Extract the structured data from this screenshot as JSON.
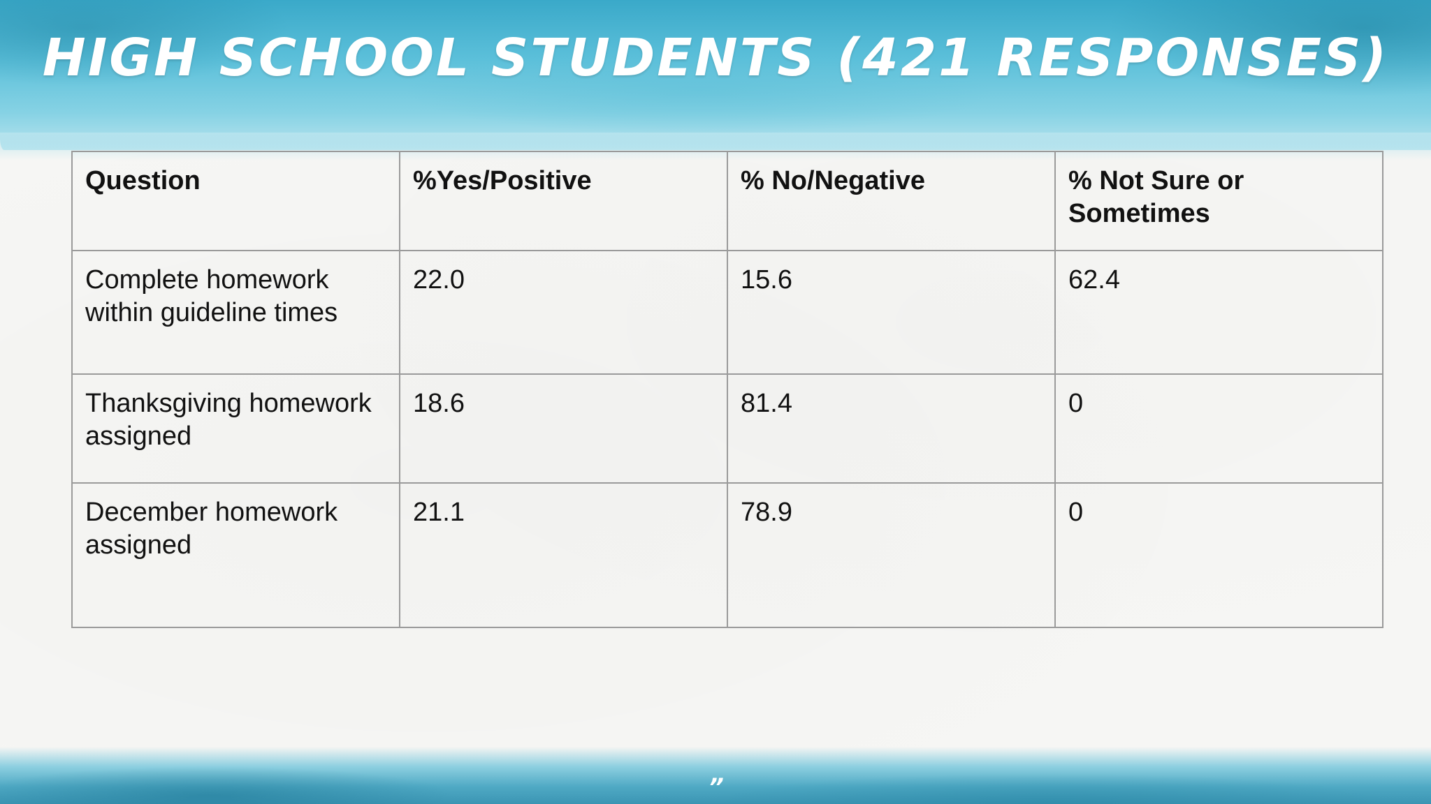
{
  "slide": {
    "title": "High school students (421 responses)",
    "page_mark": "”",
    "colors": {
      "band_blue": "#3aa9c9",
      "band_light": "#86d2e4",
      "paper": "#f6f6f4",
      "grid": "#9a9a9a",
      "text": "#111111",
      "title_text": "#ffffff"
    }
  },
  "table": {
    "headers": [
      "Question",
      "%Yes/Positive",
      "% No/Negative",
      "% Not Sure or Sometimes"
    ],
    "rows": [
      [
        "Complete homework within guideline times",
        "22.0",
        "15.6",
        "62.4"
      ],
      [
        "Thanksgiving homework assigned",
        "18.6",
        "81.4",
        "0"
      ],
      [
        "December homework assigned",
        "21.1",
        "78.9",
        "0"
      ]
    ]
  }
}
